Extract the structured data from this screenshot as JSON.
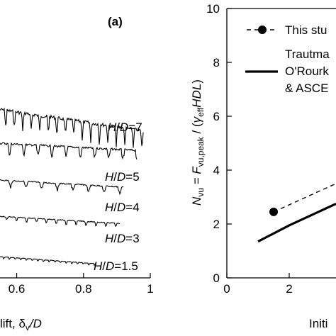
{
  "chart_data": [
    {
      "type": "line",
      "panel_label": "(a)",
      "xlabel": "lift, δv/D",
      "xlabel_parts": [
        "lift, δ",
        "v",
        "/D"
      ],
      "xlim": [
        0.55,
        1.0
      ],
      "xticks": [
        {
          "value": 0.6,
          "label": "0.6"
        },
        {
          "value": 0.8,
          "label": "0.8"
        },
        {
          "value": 1.0,
          "label": "1"
        }
      ],
      "grid": false,
      "series": [
        {
          "name": "H/D=7",
          "label_parts": [
            "H",
            "/",
            "D",
            "=7"
          ],
          "x_end": 0.98
        },
        {
          "name": "H/D=5",
          "label_parts": [
            "H",
            "/",
            "D",
            "=5"
          ],
          "x_end": 0.96
        },
        {
          "name": "H/D=4",
          "label_parts": [
            "H",
            "/",
            "D",
            "=4"
          ],
          "x_end": 0.92
        },
        {
          "name": "H/D=3",
          "label_parts": [
            "H",
            "/",
            "D",
            "=3"
          ],
          "x_end": 0.91
        },
        {
          "name": "H/D=1.5",
          "label_parts": [
            "H",
            "/",
            "D",
            "=1.5"
          ],
          "x_end": 0.84
        }
      ]
    },
    {
      "type": "scatter",
      "xlabel": "Initi",
      "ylabel": "Nvu = Fvu,peak / (γeffHDL)",
      "ylabel_parts": {
        "n": "N",
        "n_sub": "vu",
        "eq": " = ",
        "f": "F",
        "f_sub": "vu,peak",
        "rest1": " / (",
        "gamma": "γ",
        "gamma_sub": "eff",
        "hdl": "HDL",
        "rest2": ")"
      },
      "xlim": [
        0,
        3.5
      ],
      "ylim": [
        0,
        10
      ],
      "xticks": [
        {
          "value": 0,
          "label": "0"
        },
        {
          "value": 2,
          "label": "2"
        }
      ],
      "yticks": [
        {
          "value": 0,
          "label": "0"
        },
        {
          "value": 2,
          "label": "2"
        },
        {
          "value": 4,
          "label": "4"
        },
        {
          "value": 6,
          "label": "6"
        },
        {
          "value": 8,
          "label": "8"
        },
        {
          "value": 10,
          "label": "10"
        }
      ],
      "grid": false,
      "legend_placement": "top-right",
      "legend": [
        {
          "label": "This stu",
          "style": "dashed-marker"
        },
        {
          "label": "Trautma",
          "style": "solid"
        },
        {
          "label": "O'Rourk",
          "style": "none"
        },
        {
          "label": "& ASCE",
          "style": "none"
        }
      ],
      "series": [
        {
          "style": "dashed-marker",
          "points": [
            {
              "x": 1.5,
              "y": 2.45
            },
            {
              "x": 3.5,
              "y": 3.5
            }
          ]
        },
        {
          "style": "solid",
          "points": [
            {
              "x": 1.0,
              "y": 1.35
            },
            {
              "x": 2.0,
              "y": 1.95
            },
            {
              "x": 3.5,
              "y": 2.75
            }
          ]
        }
      ]
    }
  ]
}
